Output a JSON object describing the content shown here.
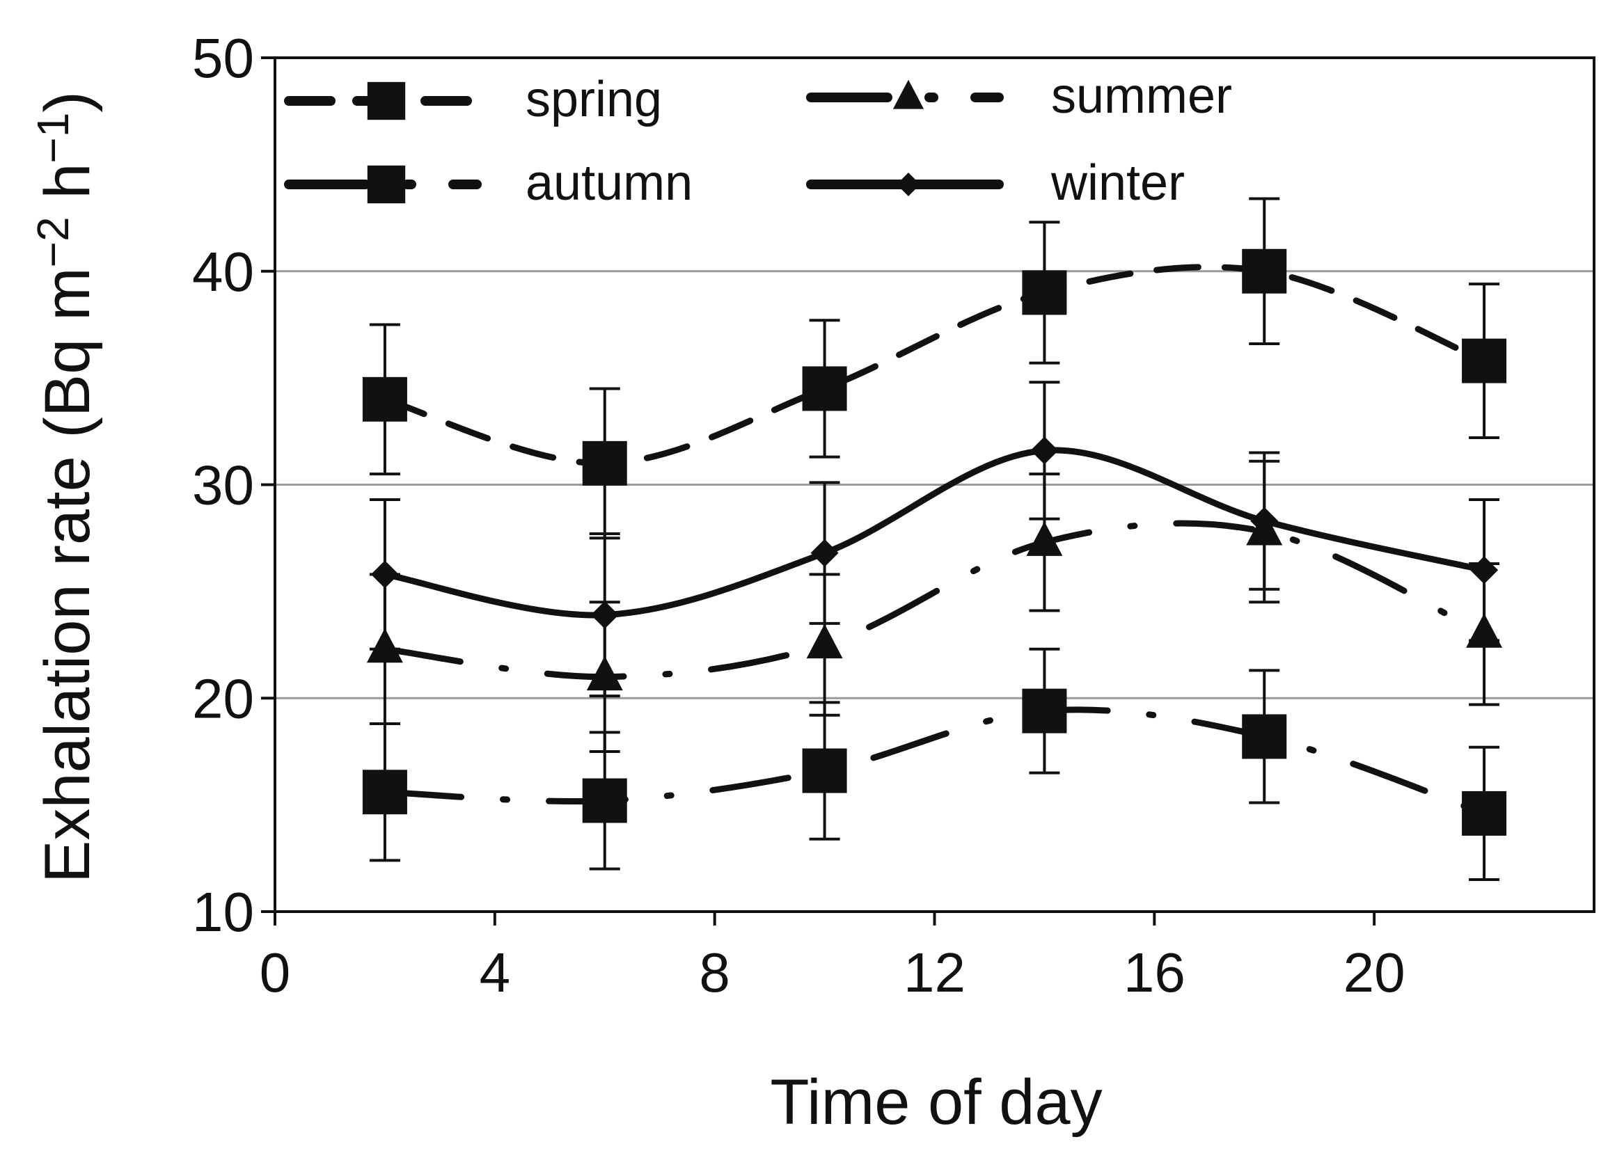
{
  "chart_data": {
    "type": "line",
    "title": "",
    "xlabel": "Time of day",
    "ylabel": "Exhalation rate (Bq m−2 h−1)",
    "ylabel_parts": {
      "main": "Exhalation rate (Bq m",
      "sup1": "−2",
      "mid": " h",
      "sup2": "−1",
      "end": ")"
    },
    "xlim": [
      0,
      24
    ],
    "ylim": [
      10,
      50
    ],
    "xticks": [
      0,
      4,
      8,
      12,
      16,
      20
    ],
    "yticks": [
      10,
      20,
      30,
      40,
      50
    ],
    "xtick_labels": [
      "0",
      "4",
      "8",
      "12",
      "16",
      "20"
    ],
    "ytick_labels": [
      "10",
      "20",
      "30",
      "40",
      "50"
    ],
    "grid": "horizontal",
    "legend_position": "top",
    "x": [
      2,
      6,
      10,
      14,
      18,
      22
    ],
    "series": [
      {
        "name": "spring",
        "marker": "square",
        "line": "dashed",
        "values": [
          34.0,
          31.0,
          34.5,
          39.0,
          40.0,
          35.8
        ],
        "error": [
          3.5,
          3.5,
          3.2,
          3.3,
          3.4,
          3.6
        ]
      },
      {
        "name": "summer",
        "marker": "triangle",
        "line": "dashdot",
        "values": [
          22.3,
          21.0,
          22.5,
          27.3,
          27.8,
          23.0
        ],
        "error": [
          3.5,
          3.5,
          3.3,
          3.2,
          3.3,
          3.3
        ]
      },
      {
        "name": "autumn",
        "marker": "square",
        "line": "dashdot",
        "values": [
          15.6,
          15.2,
          16.6,
          19.4,
          18.2,
          14.6
        ],
        "error": [
          3.2,
          3.2,
          3.2,
          2.9,
          3.1,
          3.1
        ]
      },
      {
        "name": "winter",
        "marker": "diamond",
        "line": "solid",
        "values": [
          25.8,
          23.9,
          26.8,
          31.6,
          28.3,
          26.0
        ],
        "error": [
          3.5,
          3.8,
          3.3,
          3.2,
          3.2,
          3.3
        ]
      }
    ]
  }
}
